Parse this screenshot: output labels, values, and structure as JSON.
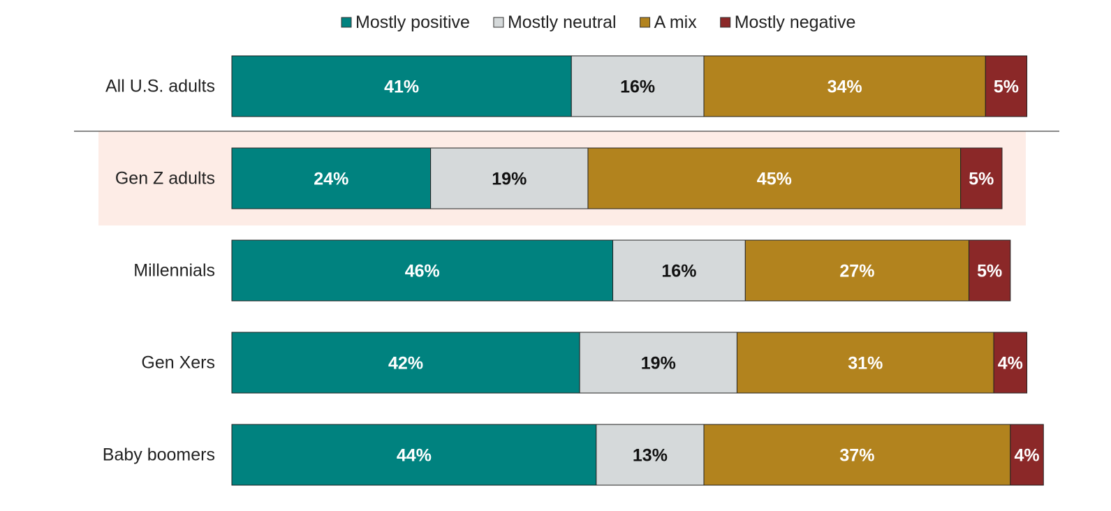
{
  "chart_data": {
    "type": "bar",
    "orientation": "horizontal",
    "stacked": true,
    "categories": [
      "All U.S. adults",
      "Gen Z adults",
      "Millennials",
      "Gen Xers",
      "Baby boomers"
    ],
    "series": [
      {
        "name": "Mostly positive",
        "values": [
          41,
          24,
          46,
          42,
          44
        ],
        "color": "#00827f",
        "label_color": "#ffffff"
      },
      {
        "name": "Mostly neutral",
        "values": [
          16,
          19,
          16,
          19,
          13
        ],
        "color": "#d5d9da",
        "label_color": "#111111"
      },
      {
        "name": "A mix",
        "values": [
          34,
          45,
          27,
          31,
          37
        ],
        "color": "#b2831e",
        "label_color": "#ffffff"
      },
      {
        "name": "Mostly negative",
        "values": [
          5,
          5,
          5,
          4,
          4
        ],
        "color": "#8b2828",
        "label_color": "#ffffff"
      }
    ],
    "value_labels": [
      [
        "41%",
        "24%",
        "46%",
        "42%",
        "44%"
      ],
      [
        "16%",
        "19%",
        "16%",
        "19%",
        "13%"
      ],
      [
        "34%",
        "45%",
        "27%",
        "31%",
        "37%"
      ],
      [
        "5%",
        "5%",
        "5%",
        "4%",
        "4%"
      ]
    ],
    "highlighted_category": "Gen Z adults",
    "highlight_color": "#fdece6",
    "legend_position": "top",
    "grid": false,
    "title": "",
    "xlabel": "",
    "ylabel": ""
  }
}
